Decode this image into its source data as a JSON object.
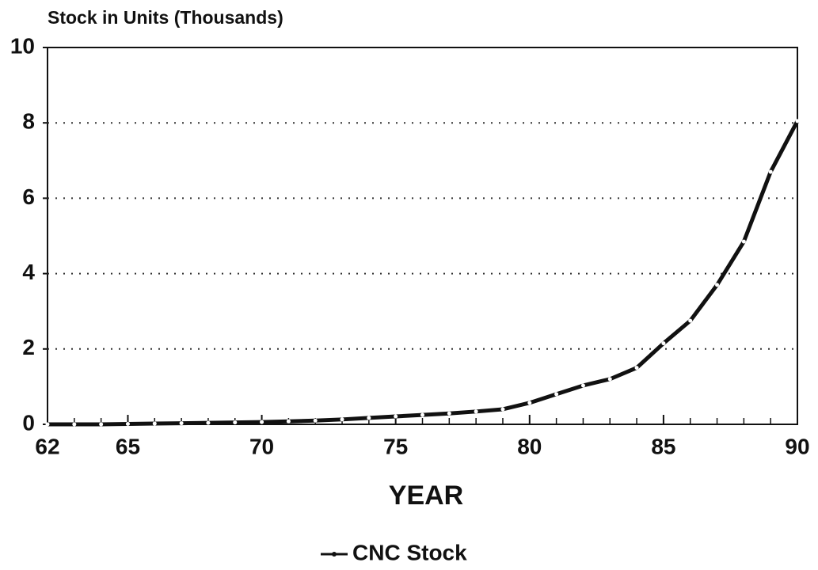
{
  "chart_data": {
    "type": "line",
    "title": "Stock in Units (Thousands)",
    "xlabel": "YEAR",
    "x": [
      62,
      63,
      64,
      65,
      66,
      67,
      68,
      69,
      70,
      71,
      72,
      73,
      74,
      75,
      76,
      77,
      78,
      79,
      80,
      81,
      82,
      83,
      84,
      85,
      86,
      87,
      88,
      89,
      90
    ],
    "series": [
      {
        "name": "CNC Stock",
        "color": "#111111",
        "values": [
          0,
          0,
          0,
          0.01,
          0.02,
          0.03,
          0.04,
          0.05,
          0.06,
          0.08,
          0.1,
          0.13,
          0.17,
          0.21,
          0.25,
          0.29,
          0.34,
          0.4,
          0.57,
          0.8,
          1.03,
          1.2,
          1.5,
          2.15,
          2.75,
          3.7,
          4.85,
          6.7,
          8.05
        ]
      }
    ],
    "xlim": [
      62,
      90
    ],
    "xticks": [
      62,
      65,
      70,
      75,
      80,
      85,
      90
    ],
    "ylim": [
      0,
      10
    ],
    "yticks": [
      0,
      2,
      4,
      6,
      8,
      10
    ],
    "grid": true,
    "legend": "bottom"
  }
}
